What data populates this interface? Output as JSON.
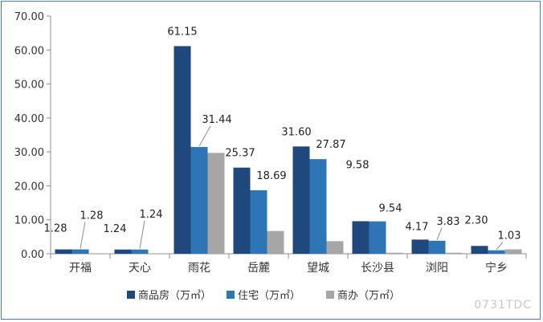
{
  "chart_data": {
    "type": "bar",
    "categories": [
      "开福",
      "天心",
      "雨花",
      "岳麓",
      "望城",
      "长沙县",
      "浏阳",
      "宁乡"
    ],
    "series": [
      {
        "name": "商品房（万㎡）",
        "color": "#1f497d",
        "values": [
          1.28,
          1.24,
          61.15,
          25.37,
          31.6,
          9.58,
          4.17,
          2.3
        ]
      },
      {
        "name": "住宅（万㎡）",
        "color": "#2e75b6",
        "values": [
          1.28,
          1.24,
          31.44,
          18.69,
          27.87,
          9.54,
          3.83,
          1.03
        ]
      },
      {
        "name": "商办（万㎡）",
        "color": "#a6a6a6",
        "values": [
          0.05,
          0.05,
          29.7,
          6.7,
          3.7,
          0.3,
          0.3,
          1.3
        ]
      }
    ],
    "data_labels": {
      "商品房（万㎡）": [
        "1.28",
        "1.24",
        "61.15",
        "25.37",
        "31.60",
        "9.58",
        "4.17",
        "2.30"
      ],
      "住宅（万㎡）": [
        "1.28",
        "1.24",
        "31.44",
        "18.69",
        "27.87",
        "9.54",
        "3.83",
        "1.03"
      ]
    },
    "ylim": [
      0,
      70
    ],
    "yticks": [
      "0.00",
      "10.00",
      "20.00",
      "30.00",
      "40.00",
      "50.00",
      "60.00",
      "70.00"
    ],
    "legend_position": "bottom",
    "grid": false,
    "title": "",
    "xlabel": "",
    "ylabel": ""
  },
  "watermark": "0731TDC"
}
